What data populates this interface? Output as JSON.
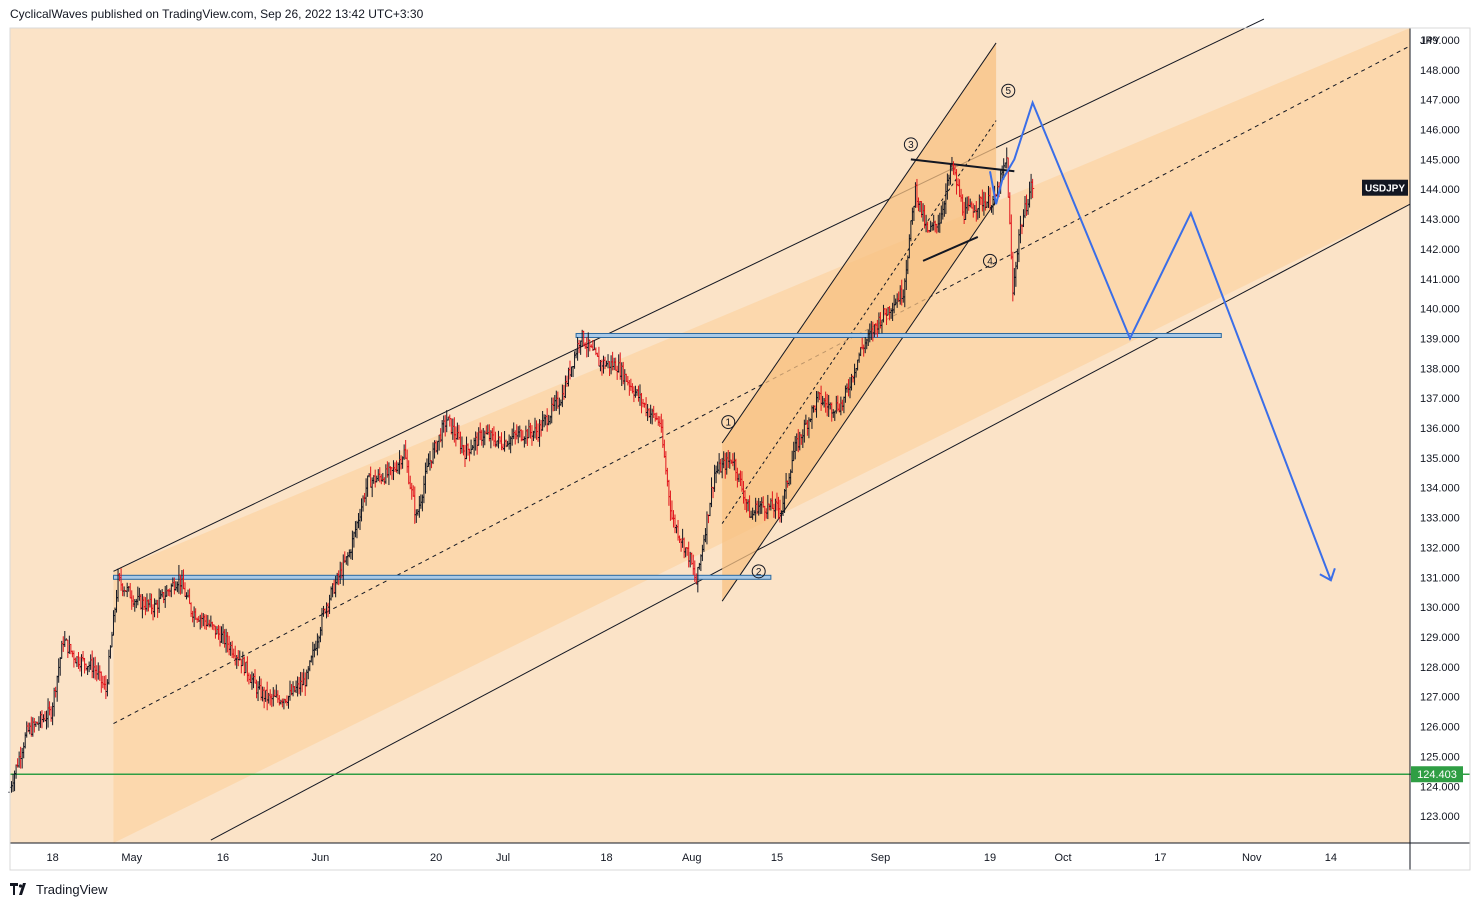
{
  "header": {
    "text": "CyclicalWaves published on TradingView.com, Sep 26, 2022 13:42 UTC+3:30"
  },
  "footer": {
    "brand": "TradingView",
    "logo_icon": "tradingview-logo-icon"
  },
  "colors": {
    "background": "#fbe3c7",
    "channel_fill": "#fbd6a8",
    "subchannel_fill": "#f8c283",
    "candle_up": "#131722",
    "candle_down": "#e0161d",
    "projection": "#3a6ee8",
    "support_line": "#2c6aa0",
    "green_line": "#2f9e44",
    "price_label_bg": "#2f9e44",
    "symbol_label_bg": "#131722"
  },
  "chart_data": {
    "type": "candlestick",
    "symbol": "USDJPY",
    "currency": "JPY",
    "ylim": [
      122.1,
      149.4
    ],
    "y_ticks": [
      "149.000",
      "148.000",
      "147.000",
      "146.000",
      "145.000",
      "144.000",
      "143.000",
      "142.000",
      "141.000",
      "140.000",
      "139.000",
      "138.000",
      "137.000",
      "136.000",
      "135.000",
      "134.000",
      "133.000",
      "132.000",
      "131.000",
      "130.000",
      "129.000",
      "128.000",
      "127.000",
      "126.000",
      "125.000",
      "124.000",
      "123.000"
    ],
    "x_ticks": [
      "18",
      "May",
      "16",
      "Jun",
      "20",
      "Jul",
      "18",
      "Aug",
      "15",
      "Sep",
      "19",
      "Oct",
      "17",
      "Nov",
      "14"
    ],
    "x_range": [
      "2022-04-11",
      "2022-11-27"
    ],
    "tick_dates": [
      "2022-04-18",
      "2022-05-01",
      "2022-05-16",
      "2022-06-01",
      "2022-06-20",
      "2022-07-01",
      "2022-07-18",
      "2022-08-01",
      "2022-08-15",
      "2022-09-01",
      "2022-09-19",
      "2022-10-01",
      "2022-10-17",
      "2022-11-01",
      "2022-11-14"
    ],
    "symbol_label": "USDJPY",
    "symbol_price": 144.05,
    "level_label": "124.403",
    "level_value": 124.403,
    "price_path": [
      [
        "2022-04-11",
        123.8
      ],
      [
        "2022-04-14",
        125.8
      ],
      [
        "2022-04-18",
        126.5
      ],
      [
        "2022-04-20",
        128.9
      ],
      [
        "2022-04-22",
        128.3
      ],
      [
        "2022-04-25",
        128.0
      ],
      [
        "2022-04-27",
        127.2
      ],
      [
        "2022-04-29",
        130.9
      ],
      [
        "2022-05-02",
        130.2
      ],
      [
        "2022-05-05",
        130.0
      ],
      [
        "2022-05-09",
        131.0
      ],
      [
        "2022-05-11",
        129.9
      ],
      [
        "2022-05-13",
        129.6
      ],
      [
        "2022-05-17",
        128.8
      ],
      [
        "2022-05-19",
        128.3
      ],
      [
        "2022-05-22",
        127.2
      ],
      [
        "2022-05-24",
        126.9
      ],
      [
        "2022-05-27",
        127.0
      ],
      [
        "2022-05-30",
        127.6
      ],
      [
        "2022-06-02",
        130.0
      ],
      [
        "2022-06-06",
        131.8
      ],
      [
        "2022-06-09",
        134.2
      ],
      [
        "2022-06-13",
        134.5
      ],
      [
        "2022-06-15",
        135.2
      ],
      [
        "2022-06-17",
        133.0
      ],
      [
        "2022-06-19",
        134.8
      ],
      [
        "2022-06-22",
        136.3
      ],
      [
        "2022-06-25",
        135.2
      ],
      [
        "2022-06-28",
        135.8
      ],
      [
        "2022-07-01",
        135.5
      ],
      [
        "2022-07-04",
        135.8
      ],
      [
        "2022-07-07",
        135.9
      ],
      [
        "2022-07-11",
        137.1
      ],
      [
        "2022-07-14",
        139.1
      ],
      [
        "2022-07-17",
        138.2
      ],
      [
        "2022-07-20",
        138.1
      ],
      [
        "2022-07-22",
        137.5
      ],
      [
        "2022-07-25",
        136.6
      ],
      [
        "2022-07-27",
        136.2
      ],
      [
        "2022-07-29",
        133.0
      ],
      [
        "2022-08-01",
        131.6
      ],
      [
        "2022-08-02",
        130.8
      ],
      [
        "2022-08-05",
        134.5
      ],
      [
        "2022-08-08",
        135.0
      ],
      [
        "2022-08-11",
        133.0
      ],
      [
        "2022-08-12",
        133.4
      ],
      [
        "2022-08-16",
        133.3
      ],
      [
        "2022-08-18",
        135.2
      ],
      [
        "2022-08-22",
        137.0
      ],
      [
        "2022-08-24",
        136.7
      ],
      [
        "2022-08-26",
        136.8
      ],
      [
        "2022-08-29",
        138.6
      ],
      [
        "2022-09-01",
        139.6
      ],
      [
        "2022-09-05",
        140.6
      ],
      [
        "2022-09-07",
        144.0
      ],
      [
        "2022-09-09",
        142.5
      ],
      [
        "2022-09-11",
        143.0
      ],
      [
        "2022-09-13",
        144.8
      ],
      [
        "2022-09-15",
        143.2
      ],
      [
        "2022-09-18",
        143.6
      ],
      [
        "2022-09-20",
        143.6
      ],
      [
        "2022-09-22",
        145.0
      ],
      [
        "2022-09-23",
        140.5
      ],
      [
        "2022-09-24",
        142.5
      ],
      [
        "2022-09-26",
        144.1
      ]
    ],
    "projection_path": [
      [
        "2022-09-19",
        144.6
      ],
      [
        "2022-09-20",
        143.5
      ],
      [
        "2022-09-21",
        144.3
      ],
      [
        "2022-09-23",
        145.0
      ],
      [
        "2022-09-26",
        146.9
      ],
      [
        "2022-10-12",
        139.0
      ],
      [
        "2022-10-22",
        143.2
      ],
      [
        "2022-11-14",
        130.9
      ]
    ],
    "horizontal_levels": [
      {
        "value": 131.0,
        "from": "2022-04-28",
        "to": "2022-08-14"
      },
      {
        "value": 139.1,
        "from": "2022-07-13",
        "to": "2022-10-27"
      }
    ],
    "green_level": 124.403,
    "main_channel": {
      "upper": [
        [
          "2022-04-28",
          131.2
        ],
        [
          "2022-11-03",
          149.7
        ]
      ],
      "lower": [
        [
          "2022-05-14",
          122.2
        ],
        [
          "2022-11-27",
          143.5
        ]
      ],
      "median": [
        [
          "2022-04-28",
          126.1
        ],
        [
          "2022-11-27",
          148.8
        ]
      ]
    },
    "sub_channel": {
      "left": [
        [
          "2022-08-06",
          135.5
        ],
        [
          "2022-08-06",
          130.2
        ]
      ],
      "upper": [
        [
          "2022-08-06",
          135.5
        ],
        [
          "2022-09-20",
          148.9
        ]
      ],
      "lower": [
        [
          "2022-08-06",
          130.2
        ],
        [
          "2022-09-20",
          143.6
        ]
      ],
      "median": [
        [
          "2022-08-06",
          132.8
        ],
        [
          "2022-09-20",
          146.3
        ]
      ]
    },
    "triangle": {
      "top": [
        [
          "2022-09-06",
          145.0
        ],
        [
          "2022-09-23",
          144.6
        ]
      ],
      "bottom": [
        [
          "2022-09-08",
          141.6
        ],
        [
          "2022-09-17",
          142.4
        ]
      ]
    },
    "wave_labels": [
      {
        "label": "1",
        "date": "2022-08-07",
        "price": 136.2
      },
      {
        "label": "2",
        "date": "2022-08-12",
        "price": 131.2
      },
      {
        "label": "3",
        "date": "2022-09-06",
        "price": 145.5
      },
      {
        "label": "4",
        "date": "2022-09-19",
        "price": 141.6
      },
      {
        "label": "5",
        "date": "2022-09-22",
        "price": 147.3
      }
    ]
  }
}
